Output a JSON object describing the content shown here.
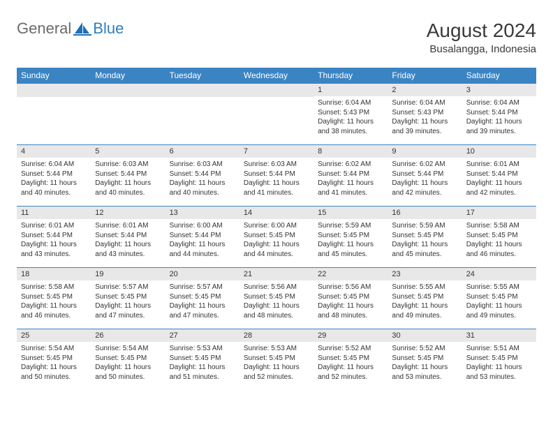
{
  "logo": {
    "text_general": "General",
    "text_blue": "Blue",
    "icon_color": "#1d6fb8"
  },
  "title": {
    "month": "August 2024",
    "location": "Busalangga, Indonesia"
  },
  "colors": {
    "header_bg": "#3b84c4",
    "header_text": "#ffffff",
    "daynum_bg": "#e8e8e8",
    "border": "#3b84c4",
    "text": "#333333"
  },
  "day_headers": [
    "Sunday",
    "Monday",
    "Tuesday",
    "Wednesday",
    "Thursday",
    "Friday",
    "Saturday"
  ],
  "weeks": [
    [
      null,
      null,
      null,
      null,
      {
        "n": "1",
        "sr": "6:04 AM",
        "ss": "5:43 PM",
        "dl": "11 hours and 38 minutes."
      },
      {
        "n": "2",
        "sr": "6:04 AM",
        "ss": "5:43 PM",
        "dl": "11 hours and 39 minutes."
      },
      {
        "n": "3",
        "sr": "6:04 AM",
        "ss": "5:44 PM",
        "dl": "11 hours and 39 minutes."
      }
    ],
    [
      {
        "n": "4",
        "sr": "6:04 AM",
        "ss": "5:44 PM",
        "dl": "11 hours and 40 minutes."
      },
      {
        "n": "5",
        "sr": "6:03 AM",
        "ss": "5:44 PM",
        "dl": "11 hours and 40 minutes."
      },
      {
        "n": "6",
        "sr": "6:03 AM",
        "ss": "5:44 PM",
        "dl": "11 hours and 40 minutes."
      },
      {
        "n": "7",
        "sr": "6:03 AM",
        "ss": "5:44 PM",
        "dl": "11 hours and 41 minutes."
      },
      {
        "n": "8",
        "sr": "6:02 AM",
        "ss": "5:44 PM",
        "dl": "11 hours and 41 minutes."
      },
      {
        "n": "9",
        "sr": "6:02 AM",
        "ss": "5:44 PM",
        "dl": "11 hours and 42 minutes."
      },
      {
        "n": "10",
        "sr": "6:01 AM",
        "ss": "5:44 PM",
        "dl": "11 hours and 42 minutes."
      }
    ],
    [
      {
        "n": "11",
        "sr": "6:01 AM",
        "ss": "5:44 PM",
        "dl": "11 hours and 43 minutes."
      },
      {
        "n": "12",
        "sr": "6:01 AM",
        "ss": "5:44 PM",
        "dl": "11 hours and 43 minutes."
      },
      {
        "n": "13",
        "sr": "6:00 AM",
        "ss": "5:44 PM",
        "dl": "11 hours and 44 minutes."
      },
      {
        "n": "14",
        "sr": "6:00 AM",
        "ss": "5:45 PM",
        "dl": "11 hours and 44 minutes."
      },
      {
        "n": "15",
        "sr": "5:59 AM",
        "ss": "5:45 PM",
        "dl": "11 hours and 45 minutes."
      },
      {
        "n": "16",
        "sr": "5:59 AM",
        "ss": "5:45 PM",
        "dl": "11 hours and 45 minutes."
      },
      {
        "n": "17",
        "sr": "5:58 AM",
        "ss": "5:45 PM",
        "dl": "11 hours and 46 minutes."
      }
    ],
    [
      {
        "n": "18",
        "sr": "5:58 AM",
        "ss": "5:45 PM",
        "dl": "11 hours and 46 minutes."
      },
      {
        "n": "19",
        "sr": "5:57 AM",
        "ss": "5:45 PM",
        "dl": "11 hours and 47 minutes."
      },
      {
        "n": "20",
        "sr": "5:57 AM",
        "ss": "5:45 PM",
        "dl": "11 hours and 47 minutes."
      },
      {
        "n": "21",
        "sr": "5:56 AM",
        "ss": "5:45 PM",
        "dl": "11 hours and 48 minutes."
      },
      {
        "n": "22",
        "sr": "5:56 AM",
        "ss": "5:45 PM",
        "dl": "11 hours and 48 minutes."
      },
      {
        "n": "23",
        "sr": "5:55 AM",
        "ss": "5:45 PM",
        "dl": "11 hours and 49 minutes."
      },
      {
        "n": "24",
        "sr": "5:55 AM",
        "ss": "5:45 PM",
        "dl": "11 hours and 49 minutes."
      }
    ],
    [
      {
        "n": "25",
        "sr": "5:54 AM",
        "ss": "5:45 PM",
        "dl": "11 hours and 50 minutes."
      },
      {
        "n": "26",
        "sr": "5:54 AM",
        "ss": "5:45 PM",
        "dl": "11 hours and 50 minutes."
      },
      {
        "n": "27",
        "sr": "5:53 AM",
        "ss": "5:45 PM",
        "dl": "11 hours and 51 minutes."
      },
      {
        "n": "28",
        "sr": "5:53 AM",
        "ss": "5:45 PM",
        "dl": "11 hours and 52 minutes."
      },
      {
        "n": "29",
        "sr": "5:52 AM",
        "ss": "5:45 PM",
        "dl": "11 hours and 52 minutes."
      },
      {
        "n": "30",
        "sr": "5:52 AM",
        "ss": "5:45 PM",
        "dl": "11 hours and 53 minutes."
      },
      {
        "n": "31",
        "sr": "5:51 AM",
        "ss": "5:45 PM",
        "dl": "11 hours and 53 minutes."
      }
    ]
  ],
  "labels": {
    "sunrise": "Sunrise:",
    "sunset": "Sunset:",
    "daylight": "Daylight:"
  }
}
